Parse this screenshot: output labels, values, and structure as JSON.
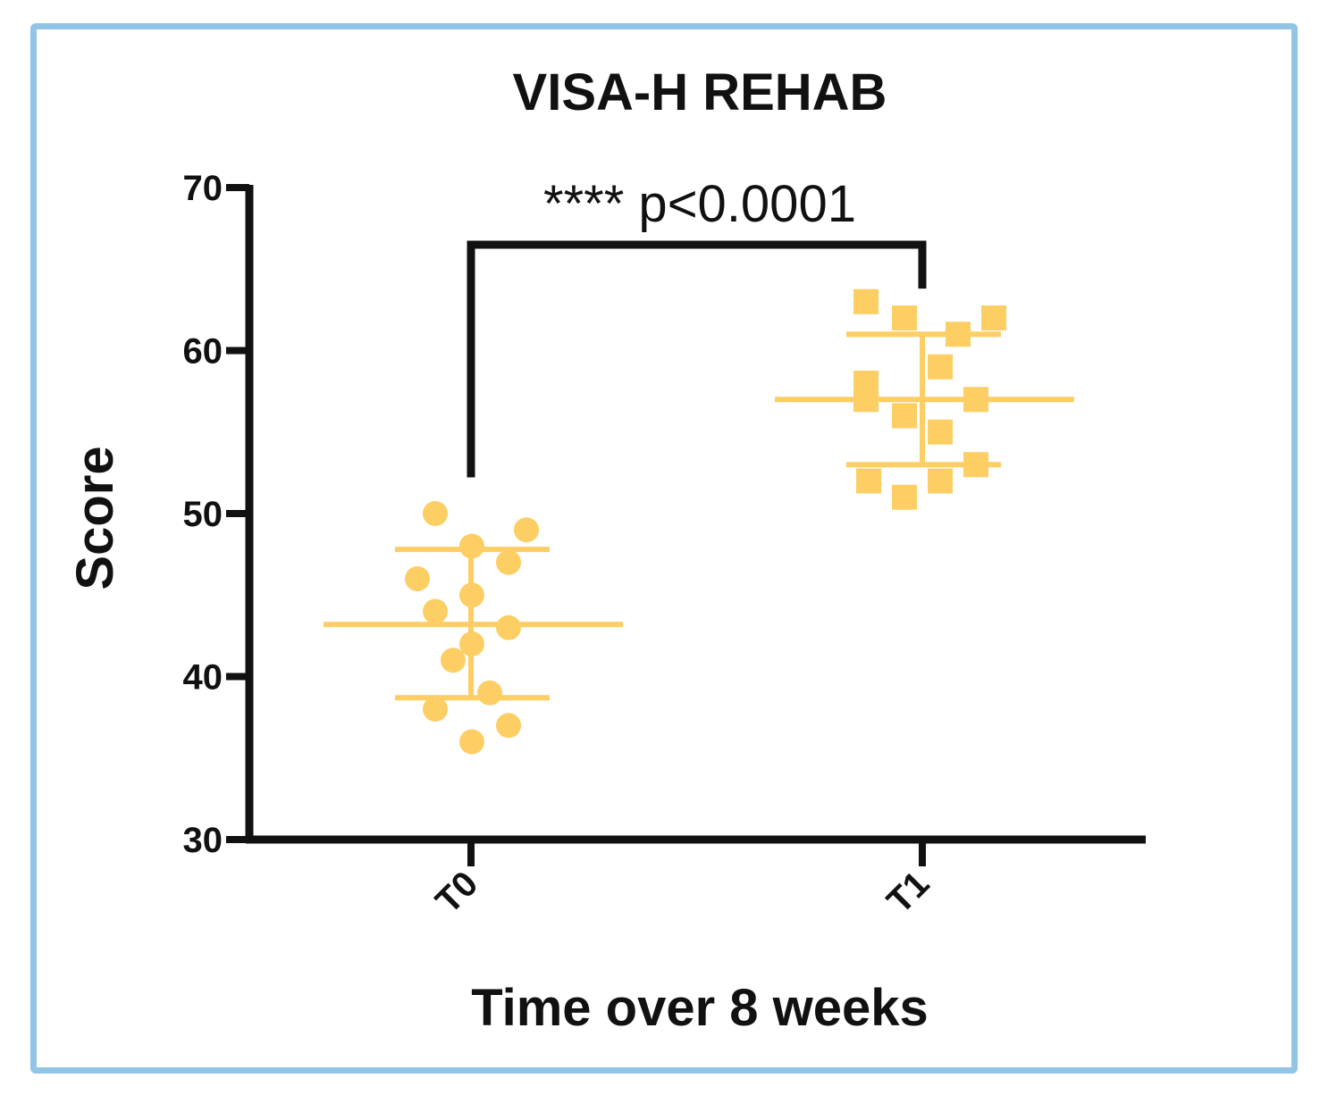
{
  "chart_data": {
    "type": "scatter",
    "title": "VISA-H REHAB",
    "xlabel": "Time over 8 weeks",
    "ylabel": "Score",
    "ylim": [
      30,
      70
    ],
    "yticks": [
      "30",
      "40",
      "50",
      "60",
      "70"
    ],
    "categories": [
      "T0",
      "T1"
    ],
    "color": "#fcce64",
    "series": [
      {
        "name": "T0",
        "marker": "circle",
        "values": [
          50,
          49,
          48,
          47,
          46,
          45,
          44,
          43,
          42,
          41,
          39,
          38,
          37,
          36
        ],
        "mean": 43.2,
        "sd_upper": 47.8,
        "sd_lower": 38.7
      },
      {
        "name": "T1",
        "marker": "square",
        "values": [
          63,
          62,
          62,
          61,
          59,
          58,
          57,
          57,
          56,
          55,
          53,
          52,
          52,
          51
        ],
        "mean": 57.0,
        "sd_upper": 61.0,
        "sd_lower": 53.0
      }
    ],
    "significance": {
      "text": "**** p<0.0001",
      "from": "T0",
      "to": "T1"
    },
    "axis_color": "#111111"
  }
}
